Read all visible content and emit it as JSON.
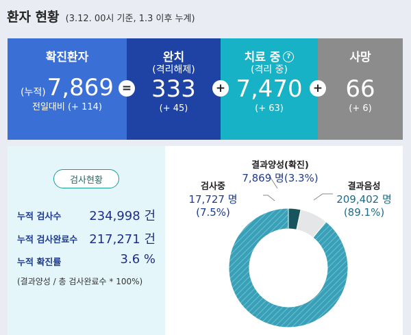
{
  "title": {
    "main": "환자 현황",
    "sub": "(3.12. 00시 기준, 1.3 이후 누계)"
  },
  "stats": {
    "confirmed": {
      "label": "확진환자",
      "prefix": "(누적)",
      "value": "7,869",
      "delta": "전일대비 (+ 114)"
    },
    "released": {
      "label": "완치",
      "sub": "(격리해제)",
      "value": "333",
      "delta": "(+ 45)"
    },
    "treatment": {
      "label": "치료 중",
      "sub": "(격리 중)",
      "value": "7,470",
      "delta": "(+ 63)"
    },
    "deaths": {
      "label": "사망",
      "value": "66",
      "delta": "(+ 6)"
    },
    "ops": {
      "eq": "=",
      "plus": "+"
    },
    "help_glyph": "?"
  },
  "testing": {
    "tag": "검사현황",
    "rows": [
      {
        "label": "누적 검사수",
        "value": "234,998 건"
      },
      {
        "label": "누적 검사완료수",
        "value": "217,271 건"
      },
      {
        "label": "누적 확진률",
        "value": "3.6 %"
      }
    ],
    "note": "(결과양성 / 총 검사완료수 * 100%)"
  },
  "chart_data": {
    "type": "pie",
    "series": [
      {
        "name": "결과양성(확진)",
        "value": 7869,
        "value_text": "7,869 명",
        "percent": 3.3,
        "percent_text": "(3.3%)"
      },
      {
        "name": "검사중",
        "value": 17727,
        "value_text": "17,727 명",
        "percent": 7.5,
        "percent_text": "(7.5%)"
      },
      {
        "name": "결과음성",
        "value": 209402,
        "value_text": "209,402 명",
        "percent": 89.1,
        "percent_text": "(89.1%)"
      }
    ],
    "colors": {
      "positive": "#17545c",
      "testing": "#e4e6e8",
      "negative": "#3aa0b8"
    }
  }
}
